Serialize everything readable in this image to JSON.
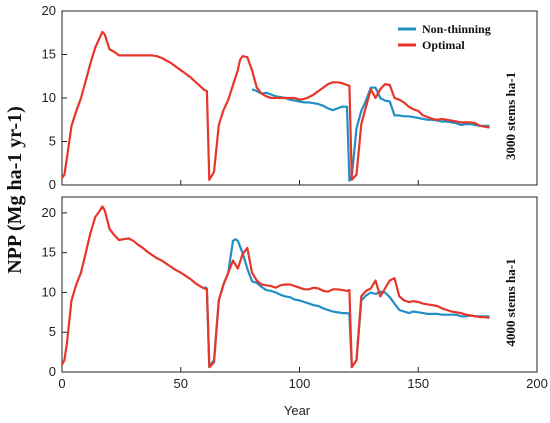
{
  "chart_data": {
    "type": "line",
    "ylabel": "NPP (Mg ha-1 yr-1)",
    "xlabel": "Year",
    "xlim": [
      0,
      200
    ],
    "xticks": [
      0,
      50,
      100,
      150,
      200
    ],
    "legend": {
      "placement": "top-right",
      "entries": [
        {
          "name": "Non-thinning",
          "color": "#1f8fc4"
        },
        {
          "name": "Optimal",
          "color": "#e8352a"
        }
      ]
    },
    "panels": [
      {
        "label": "3000 stems ha-1",
        "ylim": [
          0,
          20
        ],
        "yticks": [
          0,
          5,
          10,
          15,
          20
        ],
        "series": [
          {
            "name": "Non-thinning",
            "color": "#1f8fc4",
            "x": [
              80,
              82,
              84,
              86,
              88,
              90,
              92,
              94,
              96,
              98,
              100,
              102,
              104,
              106,
              108,
              110,
              112,
              114,
              116,
              118,
              120,
              121,
              122,
              124,
              126,
              128,
              130,
              132,
              134,
              136,
              138,
              140,
              142,
              144,
              146,
              148,
              150,
              152,
              154,
              156,
              158,
              160,
              162,
              164,
              166,
              168,
              170,
              172,
              174,
              176,
              178,
              180
            ],
            "y": [
              11.0,
              10.8,
              10.5,
              10.6,
              10.4,
              10.2,
              10.1,
              10.0,
              9.8,
              9.7,
              9.6,
              9.5,
              9.5,
              9.4,
              9.3,
              9.1,
              8.8,
              8.6,
              8.8,
              9.0,
              9.0,
              0.5,
              1.0,
              6.5,
              8.5,
              9.7,
              11.2,
              11.2,
              10.0,
              9.7,
              9.6,
              8.0,
              8.0,
              7.9,
              7.9,
              7.8,
              7.7,
              7.6,
              7.5,
              7.5,
              7.4,
              7.3,
              7.3,
              7.2,
              7.1,
              6.9,
              7.0,
              7.0,
              6.9,
              6.8,
              6.8,
              6.8
            ]
          },
          {
            "name": "Optimal",
            "color": "#e8352a",
            "x": [
              0,
              1,
              2,
              4,
              6,
              8,
              10,
              12,
              14,
              16,
              17,
              18,
              20,
              22,
              24,
              26,
              28,
              30,
              32,
              34,
              36,
              38,
              40,
              42,
              44,
              46,
              48,
              50,
              52,
              54,
              56,
              58,
              60,
              61,
              62,
              64,
              66,
              68,
              70,
              72,
              74,
              75,
              76,
              78,
              80,
              82,
              84,
              86,
              88,
              90,
              92,
              94,
              96,
              98,
              100,
              102,
              104,
              106,
              108,
              110,
              112,
              114,
              116,
              118,
              120,
              121,
              122,
              124,
              126,
              128,
              130,
              132,
              134,
              136,
              138,
              140,
              142,
              144,
              146,
              148,
              150,
              152,
              154,
              156,
              158,
              160,
              162,
              164,
              166,
              168,
              170,
              172,
              174,
              176,
              178,
              180
            ],
            "y": [
              0.8,
              1.2,
              3.0,
              6.8,
              8.5,
              10.0,
              12.0,
              14.0,
              15.8,
              17.0,
              17.6,
              17.3,
              15.6,
              15.3,
              14.9,
              14.9,
              14.9,
              14.9,
              14.9,
              14.9,
              14.9,
              14.9,
              14.8,
              14.6,
              14.3,
              14.0,
              13.6,
              13.2,
              12.8,
              12.4,
              11.9,
              11.4,
              10.9,
              10.8,
              0.6,
              1.5,
              6.9,
              8.6,
              9.8,
              11.5,
              13.2,
              14.4,
              14.8,
              14.7,
              13.2,
              11.2,
              10.5,
              10.2,
              10.0,
              10.0,
              10.0,
              10.0,
              10.0,
              10.0,
              9.8,
              9.9,
              10.1,
              10.4,
              10.8,
              11.2,
              11.6,
              11.8,
              11.8,
              11.7,
              11.5,
              11.4,
              0.6,
              1.2,
              7.0,
              9.0,
              11.0,
              10.0,
              11.0,
              11.6,
              11.5,
              10.0,
              9.8,
              9.5,
              9.0,
              8.7,
              8.5,
              8.0,
              7.8,
              7.6,
              7.5,
              7.6,
              7.5,
              7.4,
              7.3,
              7.2,
              7.2,
              7.2,
              7.1,
              6.8,
              6.7,
              6.6
            ]
          }
        ]
      },
      {
        "label": "4000 stems ha-1",
        "ylim": [
          0,
          22
        ],
        "yticks": [
          0,
          5,
          10,
          15,
          20
        ],
        "series": [
          {
            "name": "Non-thinning",
            "color": "#1f8fc4",
            "x": [
              60,
              61,
              62,
              64,
              66,
              68,
              70,
              71,
              72,
              73,
              74,
              76,
              78,
              80,
              82,
              84,
              86,
              88,
              90,
              92,
              94,
              96,
              98,
              100,
              102,
              104,
              106,
              108,
              110,
              112,
              114,
              116,
              118,
              120,
              121,
              122,
              124,
              126,
              128,
              130,
              132,
              134,
              136,
              138,
              140,
              142,
              144,
              146,
              148,
              150,
              152,
              154,
              156,
              158,
              160,
              162,
              164,
              166,
              168,
              170,
              172,
              174,
              176,
              178,
              180
            ],
            "y": [
              10.7,
              10.5,
              0.7,
              1.5,
              9.0,
              11.0,
              12.5,
              14.5,
              16.5,
              16.7,
              16.5,
              15.0,
              13.0,
              11.4,
              11.2,
              10.7,
              10.3,
              10.2,
              10.0,
              9.7,
              9.5,
              9.4,
              9.1,
              9.0,
              8.8,
              8.6,
              8.4,
              8.3,
              8.0,
              7.8,
              7.6,
              7.5,
              7.4,
              7.4,
              7.3,
              0.6,
              1.5,
              9.0,
              9.6,
              10.0,
              9.8,
              10.1,
              10.0,
              9.4,
              8.6,
              7.8,
              7.6,
              7.4,
              7.6,
              7.5,
              7.4,
              7.3,
              7.3,
              7.3,
              7.2,
              7.2,
              7.2,
              7.2,
              7.0,
              7.0,
              7.1,
              7.0,
              7.0,
              7.0,
              7.0
            ]
          },
          {
            "name": "Optimal",
            "color": "#e8352a",
            "x": [
              0,
              1,
              2,
              4,
              6,
              8,
              10,
              12,
              14,
              16,
              17,
              18,
              20,
              22,
              24,
              26,
              28,
              30,
              32,
              34,
              36,
              38,
              40,
              42,
              44,
              46,
              48,
              50,
              52,
              54,
              56,
              58,
              60,
              61,
              62,
              64,
              66,
              68,
              70,
              72,
              74,
              76,
              78,
              80,
              82,
              84,
              86,
              88,
              90,
              92,
              94,
              96,
              98,
              100,
              102,
              104,
              106,
              108,
              110,
              112,
              114,
              116,
              118,
              120,
              121,
              122,
              124,
              126,
              128,
              130,
              132,
              134,
              136,
              138,
              140,
              142,
              144,
              146,
              148,
              150,
              152,
              154,
              156,
              158,
              160,
              162,
              164,
              166,
              168,
              170,
              172,
              174,
              176,
              178,
              180
            ],
            "y": [
              0.9,
              1.5,
              3.5,
              9.0,
              11.0,
              12.5,
              15.0,
              17.5,
              19.5,
              20.3,
              20.8,
              20.3,
              18.0,
              17.2,
              16.6,
              16.7,
              16.8,
              16.5,
              16.0,
              15.6,
              15.1,
              14.7,
              14.3,
              14.0,
              13.6,
              13.2,
              12.8,
              12.5,
              12.1,
              11.7,
              11.2,
              10.8,
              10.5,
              10.4,
              0.6,
              1.2,
              9.0,
              11.0,
              12.5,
              14.0,
              13.0,
              14.8,
              15.6,
              12.5,
              11.5,
              11.0,
              10.9,
              10.8,
              10.6,
              10.9,
              11.0,
              11.0,
              10.8,
              10.6,
              10.4,
              10.4,
              10.6,
              10.5,
              10.2,
              10.1,
              10.4,
              10.4,
              10.3,
              10.2,
              10.3,
              0.6,
              1.5,
              9.5,
              10.2,
              10.5,
              11.5,
              9.5,
              10.5,
              11.5,
              11.8,
              9.5,
              9.0,
              8.8,
              8.9,
              8.8,
              8.6,
              8.5,
              8.4,
              8.3,
              8.0,
              7.8,
              7.6,
              7.5,
              7.4,
              7.2,
              7.1,
              7.0,
              6.9,
              6.9,
              6.8
            ]
          }
        ]
      }
    ]
  }
}
